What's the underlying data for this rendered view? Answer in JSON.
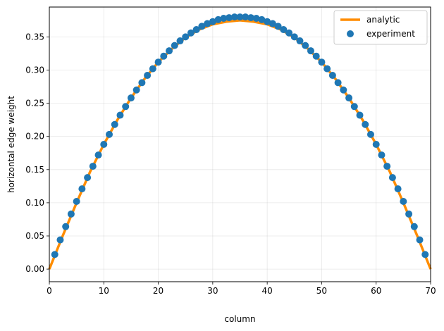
{
  "chart_data": {
    "type": "line",
    "xlabel": "column",
    "ylabel": "horizontal edge weight",
    "xlim": [
      0,
      70
    ],
    "ylim": [
      -0.019,
      0.395
    ],
    "xticks": [
      0,
      10,
      20,
      30,
      40,
      50,
      60,
      70
    ],
    "yticks": [
      0.0,
      0.05,
      0.1,
      0.15,
      0.2,
      0.25,
      0.3,
      0.35
    ],
    "xtick_labels": [
      "0",
      "10",
      "20",
      "30",
      "40",
      "50",
      "60",
      "70"
    ],
    "ytick_labels": [
      "0.00",
      "0.05",
      "0.10",
      "0.15",
      "0.20",
      "0.25",
      "0.30",
      "0.35"
    ],
    "grid": true,
    "legend_position": "top-right",
    "series": [
      {
        "name": "analytic",
        "kind": "line",
        "color": "#ff8c00",
        "x": [
          0,
          2.5,
          5,
          7.5,
          10,
          12.5,
          15,
          17.5,
          20,
          22.5,
          25,
          27.5,
          30,
          32.5,
          35,
          37.5,
          40,
          42.5,
          45,
          47.5,
          50,
          52.5,
          55,
          57.5,
          60,
          62.5,
          65,
          67.5,
          70
        ],
        "y": [
          0.0,
          0.051,
          0.1,
          0.147,
          0.188,
          0.225,
          0.258,
          0.287,
          0.312,
          0.332,
          0.349,
          0.361,
          0.369,
          0.373,
          0.375,
          0.373,
          0.369,
          0.361,
          0.349,
          0.332,
          0.312,
          0.287,
          0.258,
          0.225,
          0.188,
          0.147,
          0.1,
          0.051,
          0.0
        ]
      },
      {
        "name": "experiment",
        "kind": "scatter",
        "color": "#1f77b4",
        "x": [
          1,
          2,
          3,
          4,
          5,
          6,
          7,
          8,
          9,
          10,
          11,
          12,
          13,
          14,
          15,
          16,
          17,
          18,
          19,
          20,
          21,
          22,
          23,
          24,
          25,
          26,
          27,
          28,
          29,
          30,
          31,
          32,
          33,
          34,
          35,
          36,
          37,
          38,
          39,
          40,
          41,
          42,
          43,
          44,
          45,
          46,
          47,
          48,
          49,
          50,
          51,
          52,
          53,
          54,
          55,
          56,
          57,
          58,
          59,
          60,
          61,
          62,
          63,
          64,
          65,
          66,
          67,
          68,
          69
        ],
        "y": [
          0.022,
          0.044,
          0.064,
          0.083,
          0.102,
          0.121,
          0.138,
          0.155,
          0.172,
          0.188,
          0.203,
          0.218,
          0.232,
          0.245,
          0.258,
          0.27,
          0.281,
          0.292,
          0.302,
          0.312,
          0.321,
          0.329,
          0.337,
          0.344,
          0.35,
          0.356,
          0.361,
          0.366,
          0.37,
          0.373,
          0.376,
          0.378,
          0.379,
          0.38,
          0.38,
          0.38,
          0.379,
          0.378,
          0.376,
          0.373,
          0.37,
          0.366,
          0.361,
          0.356,
          0.35,
          0.344,
          0.337,
          0.329,
          0.321,
          0.312,
          0.302,
          0.292,
          0.281,
          0.27,
          0.258,
          0.245,
          0.232,
          0.218,
          0.203,
          0.188,
          0.172,
          0.155,
          0.138,
          0.121,
          0.102,
          0.083,
          0.064,
          0.044,
          0.022
        ]
      }
    ]
  }
}
